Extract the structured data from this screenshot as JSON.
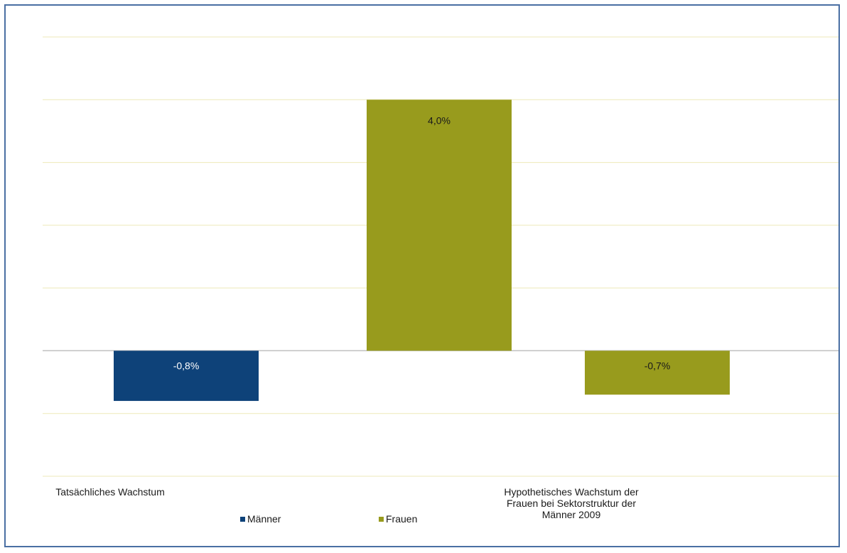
{
  "chart_data": {
    "type": "bar",
    "title": "",
    "xlabel": "",
    "ylabel": "",
    "categories": [
      "Tatsächliches Wachstum",
      "Hypothetisches Wachstum der Frauen bei Sektorstruktur der Männer 2009"
    ],
    "category_lines": [
      [
        "Tatsächliches Wachstum"
      ],
      [
        "Hypothetisches Wachstum der",
        "Frauen bei Sektorstruktur der",
        "Männer 2009"
      ]
    ],
    "ylim": [
      -2.0,
      5.0
    ],
    "grid_step": 1.0,
    "grid": true,
    "y_tick_labels_shown": false,
    "legend_position": "bottom-left",
    "bars": [
      {
        "category_index": 0,
        "series": "Männer",
        "value": -0.8,
        "label": "-0,8%",
        "slot": 0
      },
      {
        "category_index": 0,
        "series": "Frauen",
        "value": 4.0,
        "label": "4,0%",
        "slot": 1
      },
      {
        "category_index": 1,
        "series": "Frauen",
        "value": -0.7,
        "label": "-0,7%",
        "slot": 0
      }
    ],
    "series": [
      {
        "name": "Männer",
        "color": "#0e4279",
        "label_color": "#ffffff"
      },
      {
        "name": "Frauen",
        "color": "#989b1d",
        "label_color": "#1a1a1a"
      }
    ],
    "colors": {
      "gridline": "#eee9b8",
      "zero_line": "#bfbfbf",
      "frame": "#4a6fa3"
    }
  }
}
